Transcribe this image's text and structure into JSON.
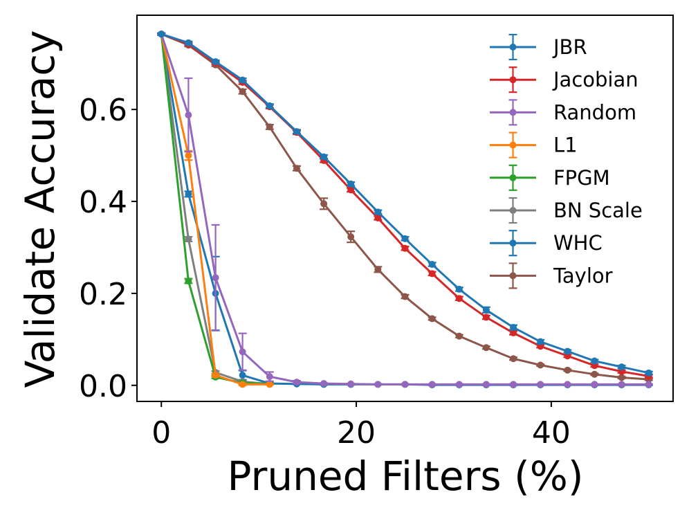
{
  "chart_data": {
    "type": "line",
    "xlabel": "Pruned Filters (%)",
    "ylabel": "Validate Accuracy",
    "xlim": [
      -2.5,
      52.5
    ],
    "ylim": [
      -0.035,
      0.805
    ],
    "xticks": [
      0,
      20,
      40
    ],
    "xtick_labels": [
      "0",
      "20",
      "40"
    ],
    "yticks": [
      0.0,
      0.2,
      0.4,
      0.6
    ],
    "ytick_labels": [
      "0.0",
      "0.2",
      "0.4",
      "0.6"
    ],
    "legend_position": "upper-right",
    "series": [
      {
        "name": "JBR",
        "color": "#1f77b4",
        "x": [
          0,
          2.78,
          5.56,
          8.33,
          11.11,
          13.89,
          16.67,
          19.44,
          22.22,
          25.0,
          27.78,
          30.56,
          33.33,
          36.11,
          38.89,
          41.67,
          44.44,
          47.22,
          50.0
        ],
        "y": [
          0.764,
          0.745,
          0.704,
          0.664,
          0.608,
          0.552,
          0.497,
          0.438,
          0.377,
          0.319,
          0.263,
          0.209,
          0.164,
          0.126,
          0.095,
          0.074,
          0.053,
          0.04,
          0.027
        ],
        "err": [
          0.002,
          0.003,
          0.003,
          0.004,
          0.004,
          0.004,
          0.004,
          0.004,
          0.004,
          0.004,
          0.004,
          0.004,
          0.006,
          0.005,
          0.004,
          0.003,
          0.003,
          0.003,
          0.003
        ]
      },
      {
        "name": "Jacobian",
        "color": "#d62728",
        "x": [
          0,
          2.78,
          5.56,
          8.33,
          11.11,
          13.89,
          16.67,
          19.44,
          22.22,
          25.0,
          27.78,
          30.56,
          33.33,
          36.11,
          38.89,
          41.67,
          44.44,
          47.22,
          50.0
        ],
        "y": [
          0.764,
          0.742,
          0.701,
          0.659,
          0.606,
          0.55,
          0.489,
          0.425,
          0.364,
          0.298,
          0.243,
          0.189,
          0.148,
          0.114,
          0.085,
          0.064,
          0.043,
          0.03,
          0.02
        ],
        "err": [
          0.002,
          0.003,
          0.003,
          0.004,
          0.004,
          0.004,
          0.004,
          0.004,
          0.004,
          0.004,
          0.004,
          0.004,
          0.004,
          0.004,
          0.003,
          0.003,
          0.003,
          0.003,
          0.003
        ]
      },
      {
        "name": "Random",
        "color": "#9467bd",
        "x": [
          0,
          2.78,
          5.56,
          8.33,
          11.11,
          13.89,
          16.67,
          19.44,
          22.22,
          25.0,
          27.78,
          30.56,
          33.33,
          36.11,
          38.89,
          41.67,
          44.44,
          47.22,
          50.0
        ],
        "y": [
          0.764,
          0.588,
          0.234,
          0.073,
          0.019,
          0.007,
          0.004,
          0.003,
          0.002,
          0.002,
          0.002,
          0.002,
          0.002,
          0.002,
          0.002,
          0.002,
          0.002,
          0.002,
          0.002
        ],
        "err": [
          0.002,
          0.08,
          0.115,
          0.04,
          0.01,
          0.003,
          0.001,
          0.001,
          0.001,
          0.001,
          0.001,
          0.001,
          0.001,
          0.001,
          0.001,
          0.001,
          0.001,
          0.001,
          0.001
        ]
      },
      {
        "name": "L1",
        "color": "#ff7f0e",
        "x": [
          0,
          2.78,
          5.56,
          8.33,
          11.11
        ],
        "y": [
          0.764,
          0.5,
          0.022,
          0.002,
          0.002
        ],
        "err": [
          0.002,
          0.01,
          0.003,
          0.002,
          0.001
        ]
      },
      {
        "name": "FPGM",
        "color": "#2ca02c",
        "x": [
          0,
          2.78,
          5.56,
          8.33,
          11.11
        ],
        "y": [
          0.764,
          0.227,
          0.018,
          0.005,
          0.003
        ],
        "err": [
          0.002,
          0.005,
          0.003,
          0.002,
          0.001
        ]
      },
      {
        "name": "BN Scale",
        "color": "#7f7f7f",
        "x": [
          0,
          2.78,
          5.56,
          8.33,
          11.11
        ],
        "y": [
          0.764,
          0.318,
          0.028,
          0.008,
          0.003
        ],
        "err": [
          0.002,
          0.005,
          0.003,
          0.002,
          0.001
        ]
      },
      {
        "name": "WHC",
        "color": "#1f77b4",
        "x": [
          0,
          2.78,
          5.56,
          8.33,
          11.11,
          13.89,
          16.67,
          19.44,
          22.22,
          25.0,
          27.78,
          30.56,
          33.33,
          36.11,
          38.89,
          41.67,
          44.44,
          47.22,
          50.0
        ],
        "y": [
          0.764,
          0.416,
          0.2,
          0.022,
          0.004,
          0.003,
          0.002,
          0.002,
          0.002,
          0.002,
          0.001,
          0.001,
          0.001,
          0.001,
          0.001,
          0.001,
          0.001,
          0.001,
          0.001
        ],
        "err": [
          0.002,
          0.006,
          0.08,
          0.01,
          0.002,
          0.001,
          0.001,
          0.001,
          0.001,
          0.001,
          0.001,
          0.001,
          0.001,
          0.001,
          0.001,
          0.001,
          0.001,
          0.001,
          0.001
        ]
      },
      {
        "name": "Taylor",
        "color": "#8c564b",
        "x": [
          0,
          2.78,
          5.56,
          8.33,
          11.11,
          13.89,
          16.67,
          19.44,
          22.22,
          25.0,
          27.78,
          30.56,
          33.33,
          36.11,
          38.89,
          41.67,
          44.44,
          47.22,
          50.0
        ],
        "y": [
          0.764,
          0.74,
          0.697,
          0.639,
          0.562,
          0.472,
          0.395,
          0.323,
          0.252,
          0.193,
          0.145,
          0.107,
          0.082,
          0.058,
          0.044,
          0.033,
          0.024,
          0.017,
          0.013
        ],
        "err": [
          0.002,
          0.003,
          0.003,
          0.005,
          0.005,
          0.005,
          0.012,
          0.012,
          0.006,
          0.004,
          0.003,
          0.003,
          0.003,
          0.003,
          0.002,
          0.002,
          0.002,
          0.002,
          0.002
        ]
      }
    ]
  }
}
